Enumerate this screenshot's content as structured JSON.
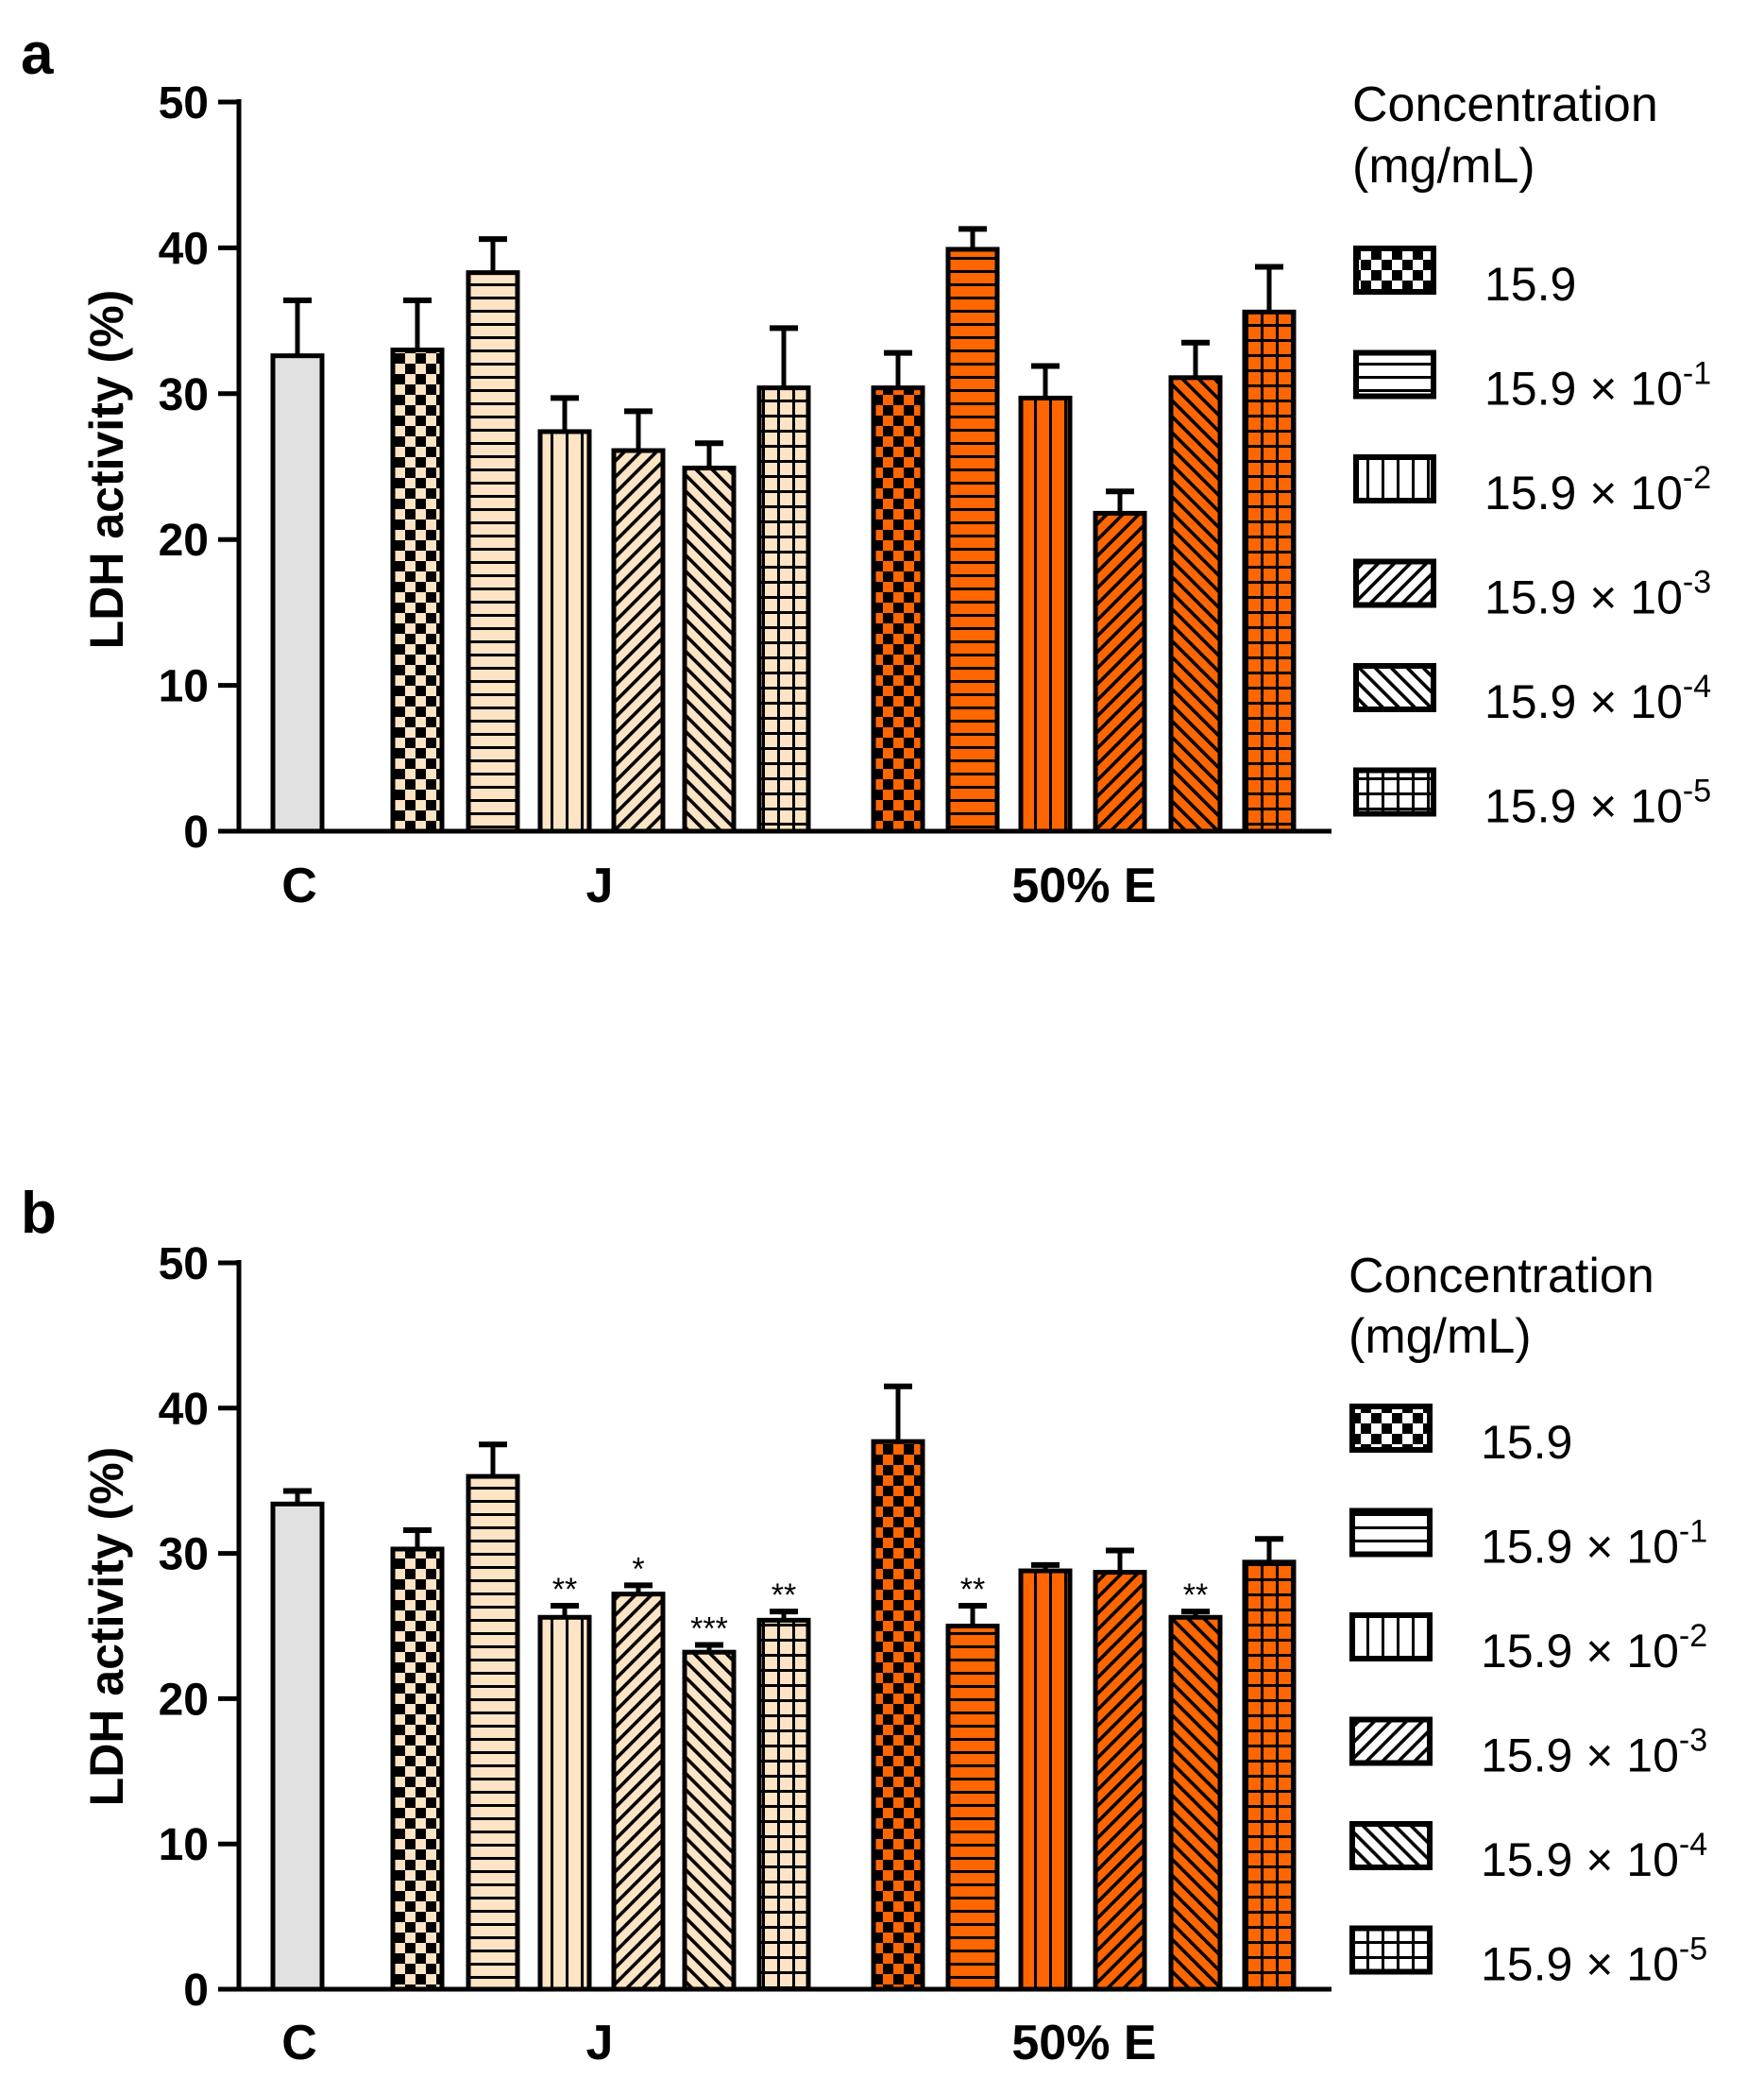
{
  "figure": {
    "legend_title_line1": "Concentration",
    "legend_title_line2": "(mg/mL)",
    "legend_entries": [
      {
        "pattern": "check",
        "base": "15.9",
        "exp": ""
      },
      {
        "pattern": "hlines",
        "base": "15.9 × 10",
        "exp": "-1"
      },
      {
        "pattern": "vlines",
        "base": "15.9 × 10",
        "exp": "-2"
      },
      {
        "pattern": "diag-right",
        "base": "15.9 × 10",
        "exp": "-3"
      },
      {
        "pattern": "diag-left",
        "base": "15.9 × 10",
        "exp": "-4"
      },
      {
        "pattern": "grid",
        "base": "15.9 × 10",
        "exp": "-5"
      }
    ],
    "colors": {
      "control": "#e1e1e1",
      "juice": "#fde4c4",
      "extract": "#ff6600",
      "ink": "#000000"
    }
  },
  "chart_data": [
    {
      "type": "bar",
      "panel_label": "a",
      "ylabel": "LDH activity (%)",
      "ylim": [
        0,
        50
      ],
      "yticks": [
        "0",
        "10",
        "20",
        "30",
        "40",
        "50"
      ],
      "group_labels": [
        "C",
        "J",
        "50% E"
      ],
      "bars": [
        {
          "group": "C",
          "pattern": "solid",
          "color": "control",
          "value": 32.6,
          "err": 3.8,
          "sig": ""
        },
        {
          "group": "J",
          "pattern": "check",
          "color": "juice",
          "value": 33.0,
          "err": 3.4,
          "sig": ""
        },
        {
          "group": "J",
          "pattern": "hlines",
          "color": "juice",
          "value": 38.3,
          "err": 2.3,
          "sig": ""
        },
        {
          "group": "J",
          "pattern": "vlines",
          "color": "juice",
          "value": 27.4,
          "err": 2.3,
          "sig": ""
        },
        {
          "group": "J",
          "pattern": "diag-right",
          "color": "juice",
          "value": 26.1,
          "err": 2.7,
          "sig": ""
        },
        {
          "group": "J",
          "pattern": "diag-left",
          "color": "juice",
          "value": 24.9,
          "err": 1.7,
          "sig": ""
        },
        {
          "group": "J",
          "pattern": "grid",
          "color": "juice",
          "value": 30.4,
          "err": 4.1,
          "sig": ""
        },
        {
          "group": "50% E",
          "pattern": "check",
          "color": "extract",
          "value": 30.4,
          "err": 2.4,
          "sig": ""
        },
        {
          "group": "50% E",
          "pattern": "hlines",
          "color": "extract",
          "value": 39.9,
          "err": 1.4,
          "sig": ""
        },
        {
          "group": "50% E",
          "pattern": "vlines",
          "color": "extract",
          "value": 29.7,
          "err": 2.2,
          "sig": ""
        },
        {
          "group": "50% E",
          "pattern": "diag-right",
          "color": "extract",
          "value": 21.8,
          "err": 1.5,
          "sig": ""
        },
        {
          "group": "50% E",
          "pattern": "diag-left",
          "color": "extract",
          "value": 31.1,
          "err": 2.4,
          "sig": ""
        },
        {
          "group": "50% E",
          "pattern": "grid",
          "color": "extract",
          "value": 35.6,
          "err": 3.1,
          "sig": ""
        }
      ]
    },
    {
      "type": "bar",
      "panel_label": "b",
      "ylabel": "LDH activity (%)",
      "ylim": [
        0,
        50
      ],
      "yticks": [
        "0",
        "10",
        "20",
        "30",
        "40",
        "50"
      ],
      "group_labels": [
        "C",
        "J",
        "50% E"
      ],
      "bars": [
        {
          "group": "C",
          "pattern": "solid",
          "color": "control",
          "value": 33.4,
          "err": 0.9,
          "sig": ""
        },
        {
          "group": "J",
          "pattern": "check",
          "color": "juice",
          "value": 30.3,
          "err": 1.3,
          "sig": ""
        },
        {
          "group": "J",
          "pattern": "hlines",
          "color": "juice",
          "value": 35.3,
          "err": 2.2,
          "sig": ""
        },
        {
          "group": "J",
          "pattern": "vlines",
          "color": "juice",
          "value": 25.6,
          "err": 0.8,
          "sig": "**"
        },
        {
          "group": "J",
          "pattern": "diag-right",
          "color": "juice",
          "value": 27.2,
          "err": 0.6,
          "sig": "*"
        },
        {
          "group": "J",
          "pattern": "diag-left",
          "color": "juice",
          "value": 23.2,
          "err": 0.5,
          "sig": "***"
        },
        {
          "group": "J",
          "pattern": "grid",
          "color": "juice",
          "value": 25.4,
          "err": 0.6,
          "sig": "**"
        },
        {
          "group": "50% E",
          "pattern": "check",
          "color": "extract",
          "value": 37.7,
          "err": 3.8,
          "sig": ""
        },
        {
          "group": "50% E",
          "pattern": "hlines",
          "color": "extract",
          "value": 25.0,
          "err": 1.4,
          "sig": "**"
        },
        {
          "group": "50% E",
          "pattern": "vlines",
          "color": "extract",
          "value": 28.8,
          "err": 0.4,
          "sig": ""
        },
        {
          "group": "50% E",
          "pattern": "diag-right",
          "color": "extract",
          "value": 28.7,
          "err": 1.5,
          "sig": ""
        },
        {
          "group": "50% E",
          "pattern": "diag-left",
          "color": "extract",
          "value": 25.6,
          "err": 0.4,
          "sig": "**"
        },
        {
          "group": "50% E",
          "pattern": "grid",
          "color": "extract",
          "value": 29.4,
          "err": 1.6,
          "sig": ""
        }
      ]
    }
  ]
}
